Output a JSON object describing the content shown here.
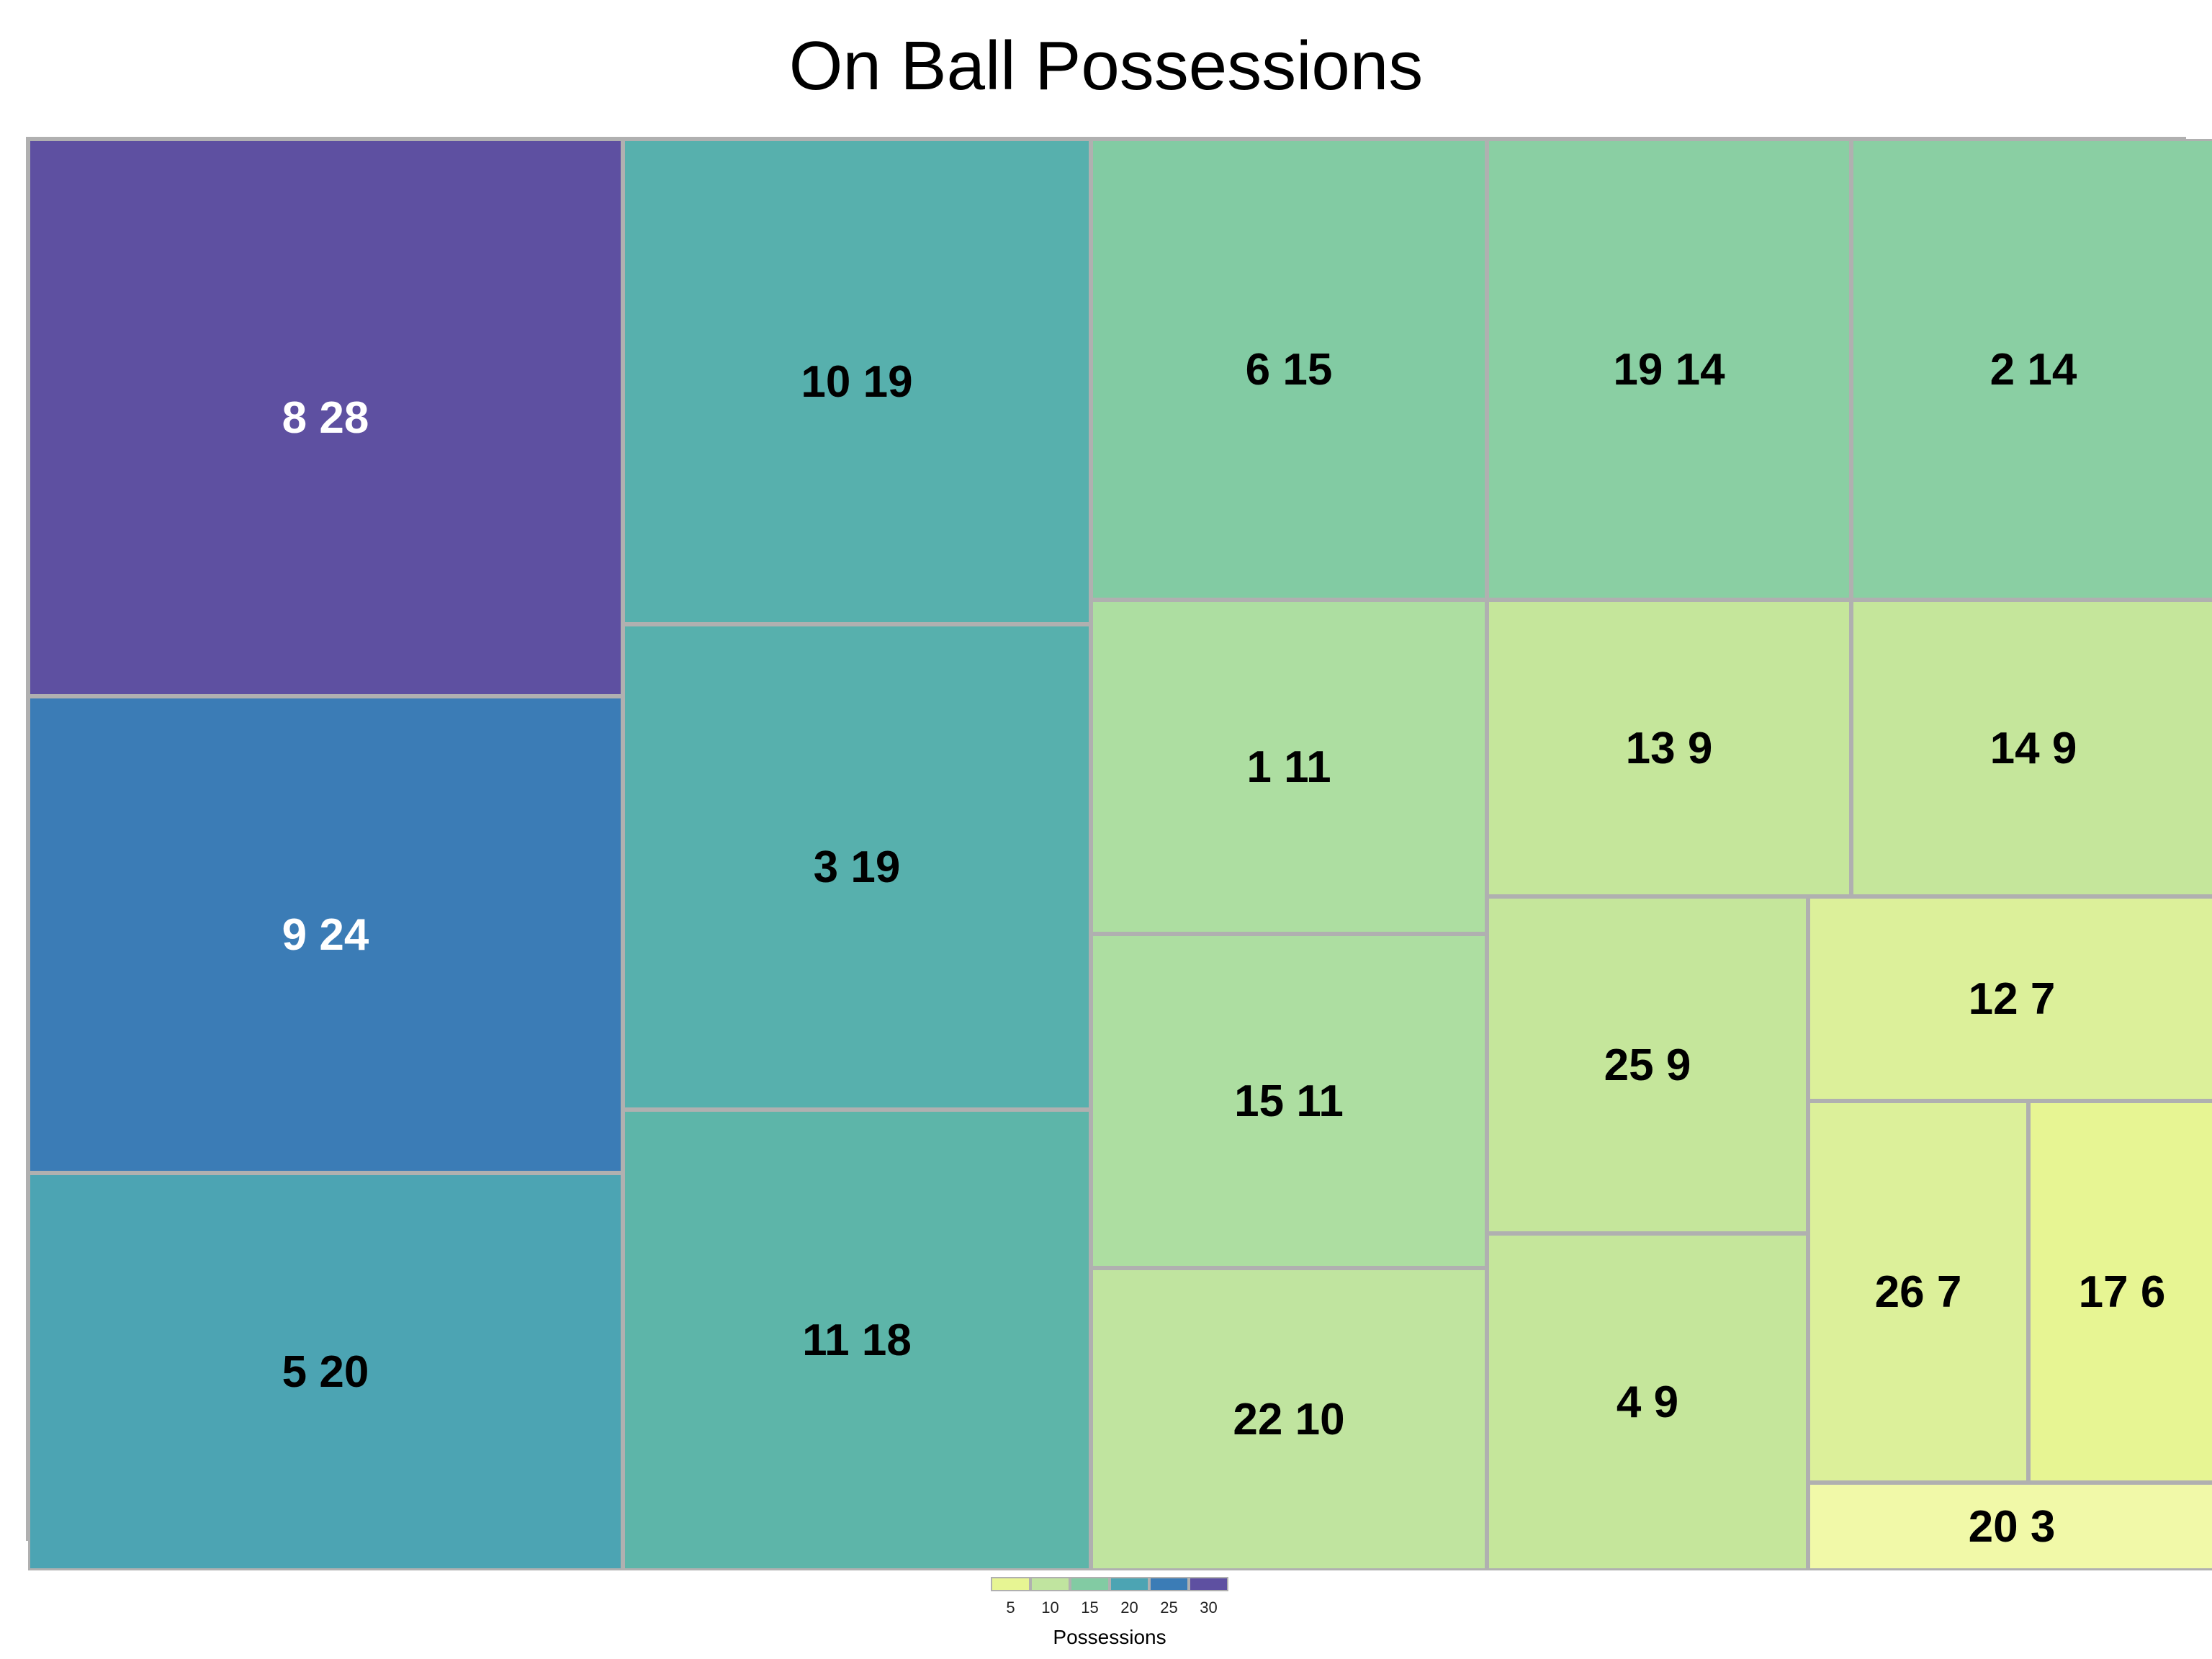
{
  "chart_data": {
    "type": "treemap",
    "title": "On Ball Possessions",
    "value_label": "Possessions",
    "tiles": [
      {
        "label": "8 28",
        "player": 8,
        "value": 28,
        "color": "#5e50a1"
      },
      {
        "label": "9 24",
        "player": 9,
        "value": 24,
        "color": "#3b7cb6"
      },
      {
        "label": "5 20",
        "player": 5,
        "value": 20,
        "color": "#4ca4b3"
      },
      {
        "label": "10 19",
        "player": 10,
        "value": 19,
        "color": "#57b0ad"
      },
      {
        "label": "3 19",
        "player": 3,
        "value": 19,
        "color": "#57b0ad"
      },
      {
        "label": "11 18",
        "player": 11,
        "value": 18,
        "color": "#5db5a9"
      },
      {
        "label": "6 15",
        "player": 6,
        "value": 15,
        "color": "#82cba3"
      },
      {
        "label": "19 14",
        "player": 19,
        "value": 14,
        "color": "#8acfa3"
      },
      {
        "label": "2 14",
        "player": 2,
        "value": 14,
        "color": "#8acfa3"
      },
      {
        "label": "1 11",
        "player": 1,
        "value": 11,
        "color": "#addea1"
      },
      {
        "label": "15 11",
        "player": 15,
        "value": 11,
        "color": "#addea1"
      },
      {
        "label": "22 10",
        "player": 22,
        "value": 10,
        "color": "#c0e49f"
      },
      {
        "label": "13 9",
        "player": 13,
        "value": 9,
        "color": "#c5e69b"
      },
      {
        "label": "14 9",
        "player": 14,
        "value": 9,
        "color": "#c5e69b"
      },
      {
        "label": "25 9",
        "player": 25,
        "value": 9,
        "color": "#c5e69b"
      },
      {
        "label": "4 9",
        "player": 4,
        "value": 9,
        "color": "#c5e69b"
      },
      {
        "label": "12 7",
        "player": 12,
        "value": 7,
        "color": "#dcf09a"
      },
      {
        "label": "26 7",
        "player": 26,
        "value": 7,
        "color": "#dcf09a"
      },
      {
        "label": "17 6",
        "player": 17,
        "value": 6,
        "color": "#e7f593"
      },
      {
        "label": "20 3",
        "player": 20,
        "value": 3,
        "color": "#f1f9a8"
      }
    ],
    "legend": {
      "title": "Possessions",
      "ticks": [
        "5",
        "10",
        "15",
        "20",
        "25",
        "30"
      ],
      "swatches": [
        "#e7f593",
        "#c0e49f",
        "#82cba3",
        "#4ca4b3",
        "#3b7cb6",
        "#5e50a1"
      ]
    }
  }
}
